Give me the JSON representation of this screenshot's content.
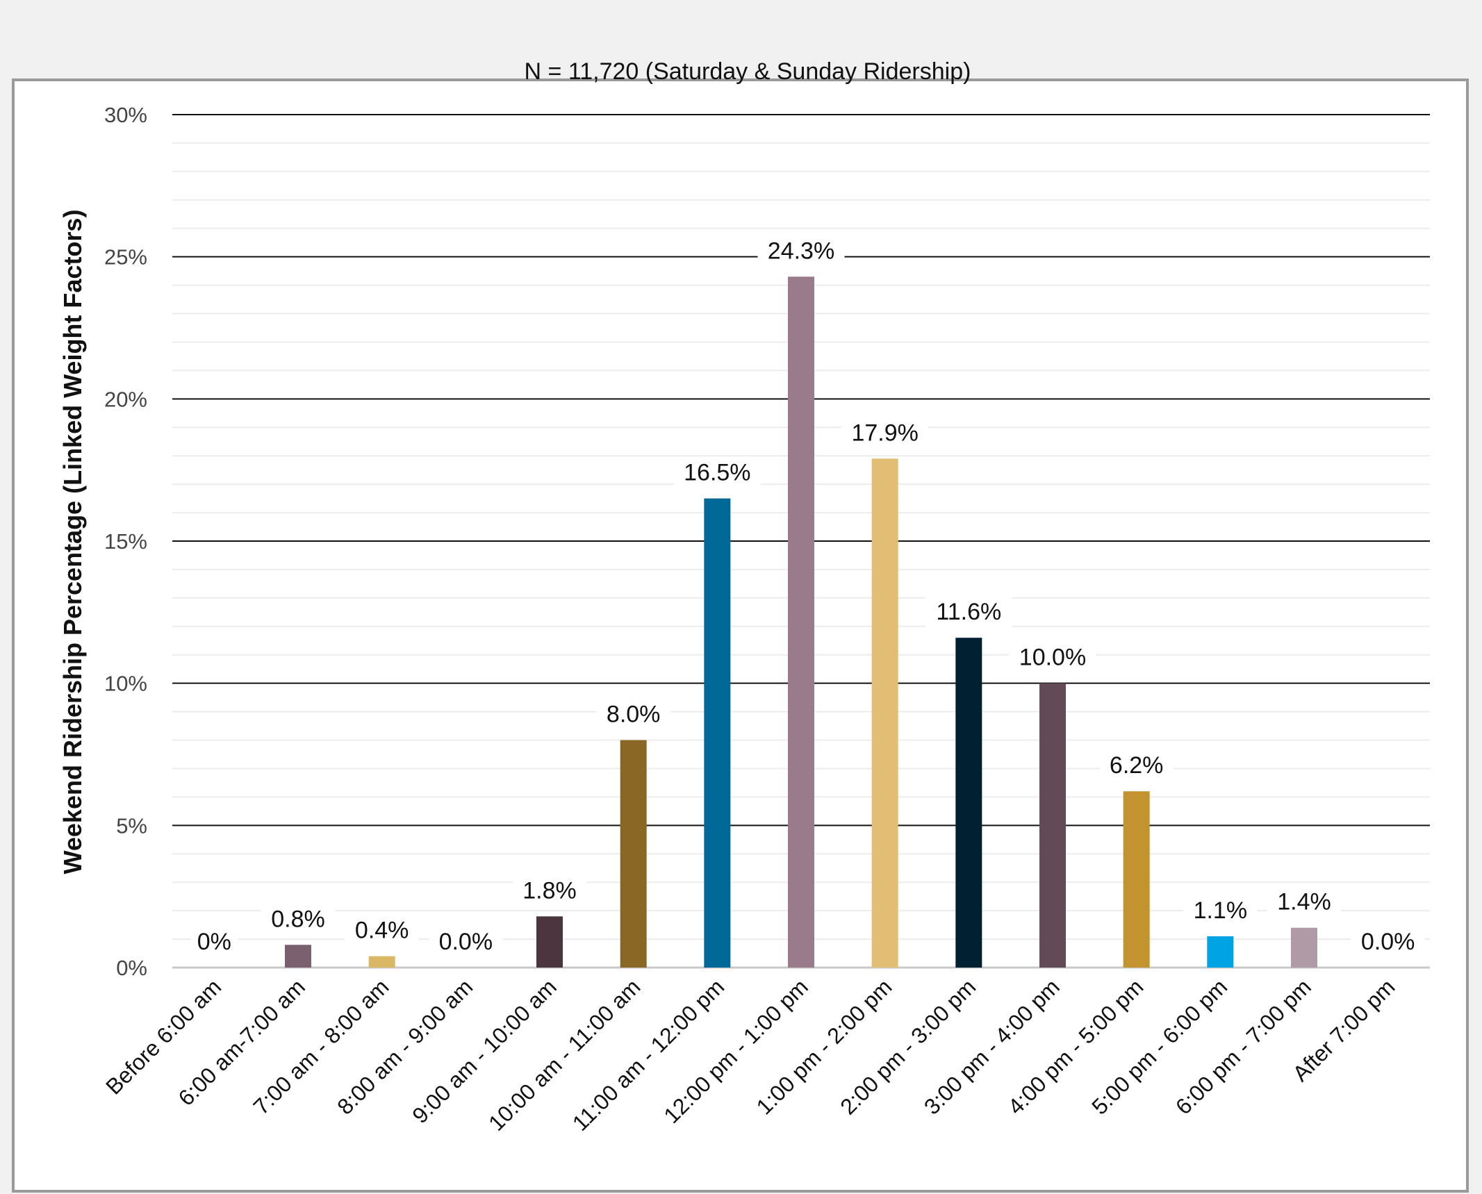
{
  "chart_data": {
    "type": "bar",
    "title": "N = 11,720 (Saturday & Sunday Ridership)",
    "xlabel": "",
    "ylabel": "Weekend Ridership Percentage (Linked Weight Factors)",
    "categories": [
      "Before 6:00 am",
      "6:00 am-7:00 am",
      "7:00 am - 8:00 am",
      "8:00 am - 9:00 am",
      "9:00 am - 10:00 am",
      "10:00 am - 11:00 am",
      "11:00 am - 12:00 pm",
      "12:00 pm - 1:00 pm",
      "1:00 pm - 2:00 pm",
      "2:00 pm - 3:00 pm",
      "3:00 pm - 4:00 pm",
      "4:00 pm - 5:00 pm",
      "5:00 pm - 6:00 pm",
      "6:00 pm - 7:00 pm",
      "After 7:00 pm"
    ],
    "values": [
      0,
      0.8,
      0.4,
      0.0,
      1.8,
      8.0,
      16.5,
      24.3,
      17.9,
      11.6,
      10.0,
      6.2,
      1.1,
      1.4,
      0.0
    ],
    "data_labels": [
      "0%",
      "0.8%",
      "0.4%",
      "0.0%",
      "1.8%",
      "8.0%",
      "16.5%",
      "24.3%",
      "17.9%",
      "11.6%",
      "10.0%",
      "6.2%",
      "1.1%",
      "1.4%",
      "0.0%"
    ],
    "colors": [
      "#7a5f6e",
      "#7a5f6e",
      "#dab764",
      "#7a5f6e",
      "#4a353f",
      "#8a6624",
      "#006896",
      "#9a7b8b",
      "#e2be74",
      "#00202f",
      "#624b57",
      "#c2932f",
      "#00a3e4",
      "#b09aa5",
      "#7a5f6e"
    ],
    "ylim": [
      0,
      30
    ],
    "yticks": [
      0,
      5,
      10,
      15,
      20,
      25,
      30
    ],
    "ytick_labels": [
      "0%",
      "5%",
      "10%",
      "15%",
      "20%",
      "25%",
      "30%"
    ],
    "grid": true,
    "legend": "none"
  }
}
